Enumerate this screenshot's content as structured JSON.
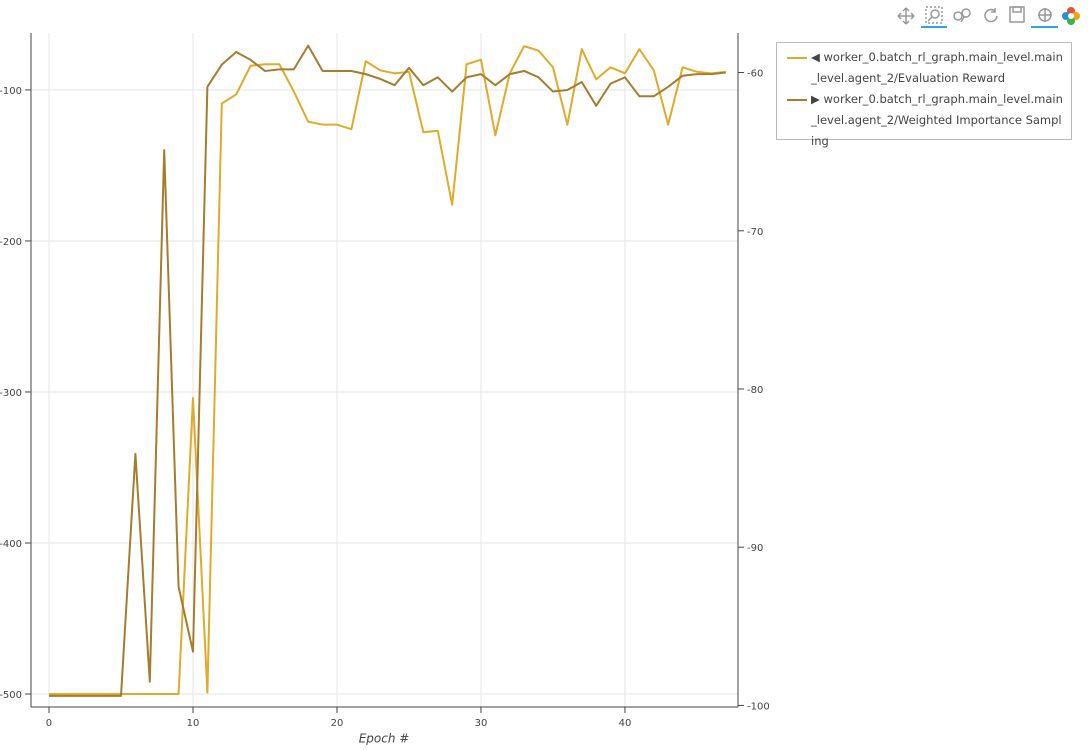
{
  "chart_data": {
    "type": "line",
    "x_label": "Epoch #",
    "x": [
      0,
      1,
      2,
      3,
      4,
      5,
      6,
      7,
      8,
      9,
      10,
      11,
      12,
      13,
      14,
      15,
      16,
      17,
      18,
      19,
      20,
      21,
      22,
      23,
      24,
      25,
      26,
      27,
      28,
      29,
      30,
      31,
      32,
      33,
      34,
      35,
      36,
      37,
      38,
      39,
      40,
      41,
      42,
      43,
      44,
      45,
      46,
      47
    ],
    "series": [
      {
        "name": "◀ worker_0.batch_rl_graph.main_level.main_level.agent_2/Evaluation Reward",
        "color": "#e0aa2a",
        "axis": "y",
        "values": [
          -500,
          -500,
          -500,
          -500,
          -500,
          -500,
          -500,
          -500,
          -500,
          -500,
          -304,
          -499,
          -109,
          -103,
          -84,
          -83,
          -83,
          -101,
          -121,
          -123,
          -123,
          -126,
          -81,
          -87,
          -89,
          -88,
          -128,
          -127,
          -176,
          -83,
          -80,
          -130,
          -89,
          -71,
          -74,
          -85,
          -123,
          -73,
          -93,
          -85,
          -89,
          -73,
          -87,
          -123,
          -85,
          -88,
          -89,
          -88
        ]
      },
      {
        "name": "▶ worker_0.batch_rl_graph.main_level.main_level.agent_2/Weighted Importance Sampling",
        "color": "#a67c2e",
        "axis": "y2",
        "values": [
          -99.4,
          -99.4,
          -99.4,
          -99.4,
          -99.4,
          -99.4,
          -84.1,
          -98.5,
          -64.9,
          -92.5,
          -96.6,
          -60.9,
          -59.5,
          -58.7,
          -59.2,
          -59.9,
          -59.8,
          -59.8,
          -58.3,
          -59.9,
          -59.9,
          -59.9,
          -60.1,
          -60.4,
          -60.8,
          -59.7,
          -60.8,
          -60.3,
          -61.2,
          -60.3,
          -60.1,
          -60.8,
          -60.1,
          -59.9,
          -60.3,
          -61.2,
          -61.1,
          -60.6,
          -62.1,
          -60.7,
          -60.3,
          -61.5,
          -61.5,
          -60.9,
          -60.2,
          -60.1,
          -60.1,
          -60.0
        ]
      }
    ],
    "xlim": [
      -1.25,
      47.85
    ],
    "xticks": [
      0,
      10,
      20,
      30,
      40
    ],
    "ylim": [
      -508.6,
      -62.3
    ],
    "yticks": [
      -500,
      -400,
      -300,
      -200,
      -100
    ],
    "y2lim": [
      -100.1,
      -57.5
    ],
    "y2ticks": [
      -100,
      -90,
      -80,
      -70,
      -60
    ],
    "grid": true
  }
}
